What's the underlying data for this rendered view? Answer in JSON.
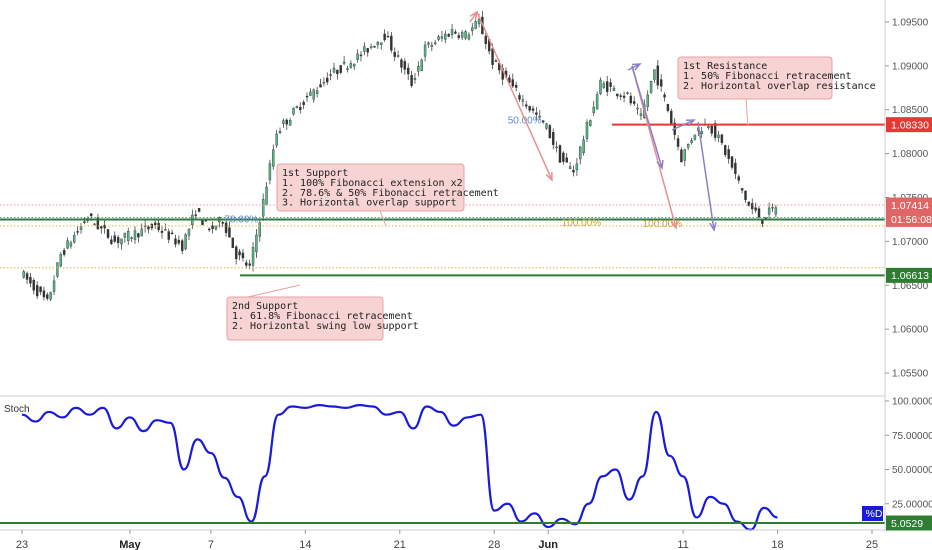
{
  "chart_data": [
    {
      "type": "candlestick",
      "title": "",
      "x_start": "2018-04-23",
      "x_end": "2018-06-25",
      "x_ticks": [
        {
          "date": "2018-04-23",
          "label": "23",
          "bold": false
        },
        {
          "date": "2018-05-01",
          "label": "May",
          "bold": true
        },
        {
          "date": "2018-05-07",
          "label": "7",
          "bold": false
        },
        {
          "date": "2018-05-14",
          "label": "14",
          "bold": false
        },
        {
          "date": "2018-05-21",
          "label": "21",
          "bold": false
        },
        {
          "date": "2018-05-28",
          "label": "28",
          "bold": false
        },
        {
          "date": "2018-06-01",
          "label": "Jun",
          "bold": true
        },
        {
          "date": "2018-06-11",
          "label": "11",
          "bold": false
        },
        {
          "date": "2018-06-18",
          "label": "18",
          "bold": false
        },
        {
          "date": "2018-06-25",
          "label": "25",
          "bold": false
        }
      ],
      "ylim": [
        1.0525,
        1.0975
      ],
      "y_ticks": [
        "1.09500",
        "1.09000",
        "1.08500",
        "1.08000",
        "1.07500",
        "1.07000",
        "1.06500",
        "1.06000",
        "1.05500"
      ],
      "grid": false,
      "candle_up_color": "#53b987",
      "candle_down_color": "#333333",
      "price_path": [
        {
          "date": "2018-04-23",
          "price": 1.0665
        },
        {
          "date": "2018-04-25",
          "price": 1.063
        },
        {
          "date": "2018-04-26",
          "price": 1.0685
        },
        {
          "date": "2018-04-28",
          "price": 1.0728
        },
        {
          "date": "2018-04-30",
          "price": 1.07
        },
        {
          "date": "2018-05-03",
          "price": 1.0718
        },
        {
          "date": "2018-05-05",
          "price": 1.0695
        },
        {
          "date": "2018-05-06",
          "price": 1.0735
        },
        {
          "date": "2018-05-07",
          "price": 1.0712
        },
        {
          "date": "2018-05-08",
          "price": 1.0725
        },
        {
          "date": "2018-05-09",
          "price": 1.0685
        },
        {
          "date": "2018-05-10",
          "price": 1.067
        },
        {
          "date": "2018-05-11",
          "price": 1.0745
        },
        {
          "date": "2018-05-12",
          "price": 1.0825
        },
        {
          "date": "2018-05-14",
          "price": 1.086
        },
        {
          "date": "2018-05-16",
          "price": 1.089
        },
        {
          "date": "2018-05-18",
          "price": 1.091
        },
        {
          "date": "2018-05-20",
          "price": 1.0935
        },
        {
          "date": "2018-05-22",
          "price": 1.088
        },
        {
          "date": "2018-05-23",
          "price": 1.092
        },
        {
          "date": "2018-05-25",
          "price": 1.094
        },
        {
          "date": "2018-05-26",
          "price": 1.0935
        },
        {
          "date": "2018-05-27",
          "price": 1.095
        },
        {
          "date": "2018-05-28",
          "price": 1.0905
        },
        {
          "date": "2018-05-30",
          "price": 1.0865
        },
        {
          "date": "2018-06-01",
          "price": 1.083
        },
        {
          "date": "2018-06-02",
          "price": 1.0795
        },
        {
          "date": "2018-06-03",
          "price": 1.078
        },
        {
          "date": "2018-06-04",
          "price": 1.083
        },
        {
          "date": "2018-06-05",
          "price": 1.088
        },
        {
          "date": "2018-06-07",
          "price": 1.0865
        },
        {
          "date": "2018-06-08",
          "price": 1.084
        },
        {
          "date": "2018-06-09",
          "price": 1.0895
        },
        {
          "date": "2018-06-10",
          "price": 1.085
        },
        {
          "date": "2018-06-11",
          "price": 1.0795
        },
        {
          "date": "2018-06-12",
          "price": 1.0825
        },
        {
          "date": "2018-06-13",
          "price": 1.0835
        },
        {
          "date": "2018-06-14",
          "price": 1.081
        },
        {
          "date": "2018-06-15",
          "price": 1.0775
        },
        {
          "date": "2018-06-16",
          "price": 1.074
        },
        {
          "date": "2018-06-17",
          "price": 1.0725
        },
        {
          "date": "2018-06-18",
          "price": 1.074
        }
      ],
      "horizontal_levels": [
        {
          "price": 1.0833,
          "label": "1.08330",
          "color": "#e53935",
          "style": "solid",
          "badge": true
        },
        {
          "price": 1.07414,
          "label": "1.07414",
          "color": "#ef9a9a",
          "style": "dotted",
          "badge": true,
          "badge_color": "#e06666"
        },
        {
          "price": 1.0725,
          "label": "01:56:08",
          "color": "#2e7d32",
          "style": "solid",
          "badge": true,
          "badge_color": "#e06666"
        },
        {
          "price": 1.0725,
          "label": "",
          "color": "#5b8bd8",
          "style": "dotted",
          "badge": false
        },
        {
          "price": 1.072,
          "label": "",
          "color": "#e6b33a",
          "style": "dotted",
          "badge": false
        },
        {
          "price": 1.067,
          "label": "",
          "color": "#e6b33a",
          "style": "dotted",
          "badge": false
        },
        {
          "price": 1.06613,
          "label": "1.06613",
          "color": "#2e7d32",
          "style": "solid",
          "badge": true
        }
      ],
      "fib_labels": [
        {
          "text": "50.00%",
          "date": "2018-05-29",
          "price": 1.0838,
          "color": "#5b8bd8"
        },
        {
          "text": "78.60%",
          "date": "2018-05-08",
          "price": 1.0725,
          "color": "#5b8bd8"
        },
        {
          "text": "100.00%",
          "date": "2018-06-02",
          "price": 1.0721,
          "color": "#c9a43a"
        },
        {
          "text": "100.00%",
          "date": "2018-06-08",
          "price": 1.072,
          "color": "#c9a43a"
        }
      ],
      "annotations": [
        {
          "title": "1st Resistance",
          "lines": [
            "1. 50% Fibonacci retracement",
            "2. Horizontal overlap resistance"
          ]
        },
        {
          "title": "1st Support",
          "lines": [
            "1. 100% Fibonacci extension x2",
            "2. 78.6% & 50% Fibonacci retracement",
            "3. Horizontal overlap support"
          ]
        },
        {
          "title": "2nd Support",
          "lines": [
            "1. 61.8% Fibonacci retracement",
            "2. Horizontal swing low support"
          ]
        }
      ]
    },
    {
      "type": "line",
      "title": "Stoch",
      "ylim": [
        0,
        100
      ],
      "y_ticks": [
        "100.0000",
        "75.00000",
        "50.00000",
        "25.00000"
      ],
      "series": [
        {
          "name": "%D",
          "color": "#1a1adb",
          "points": [
            {
              "date": "2018-04-23",
              "value": 90
            },
            {
              "date": "2018-04-24",
              "value": 85
            },
            {
              "date": "2018-04-25",
              "value": 92
            },
            {
              "date": "2018-04-26",
              "value": 88
            },
            {
              "date": "2018-04-27",
              "value": 95
            },
            {
              "date": "2018-04-28",
              "value": 90
            },
            {
              "date": "2018-04-29",
              "value": 95
            },
            {
              "date": "2018-04-30",
              "value": 80
            },
            {
              "date": "2018-05-01",
              "value": 88
            },
            {
              "date": "2018-05-02",
              "value": 78
            },
            {
              "date": "2018-05-03",
              "value": 86
            },
            {
              "date": "2018-05-04",
              "value": 84
            },
            {
              "date": "2018-05-05",
              "value": 50
            },
            {
              "date": "2018-05-06",
              "value": 72
            },
            {
              "date": "2018-05-07",
              "value": 62
            },
            {
              "date": "2018-05-08",
              "value": 44
            },
            {
              "date": "2018-05-09",
              "value": 30
            },
            {
              "date": "2018-05-10",
              "value": 12
            },
            {
              "date": "2018-05-11",
              "value": 45
            },
            {
              "date": "2018-05-12",
              "value": 90
            },
            {
              "date": "2018-05-13",
              "value": 96
            },
            {
              "date": "2018-05-14",
              "value": 95
            },
            {
              "date": "2018-05-15",
              "value": 97
            },
            {
              "date": "2018-05-16",
              "value": 96
            },
            {
              "date": "2018-05-17",
              "value": 95
            },
            {
              "date": "2018-05-18",
              "value": 97
            },
            {
              "date": "2018-05-19",
              "value": 96
            },
            {
              "date": "2018-05-20",
              "value": 90
            },
            {
              "date": "2018-05-21",
              "value": 92
            },
            {
              "date": "2018-05-22",
              "value": 80
            },
            {
              "date": "2018-05-23",
              "value": 96
            },
            {
              "date": "2018-05-24",
              "value": 92
            },
            {
              "date": "2018-05-25",
              "value": 82
            },
            {
              "date": "2018-05-26",
              "value": 88
            },
            {
              "date": "2018-05-27",
              "value": 90
            },
            {
              "date": "2018-05-28",
              "value": 20
            },
            {
              "date": "2018-05-29",
              "value": 25
            },
            {
              "date": "2018-05-30",
              "value": 12
            },
            {
              "date": "2018-05-31",
              "value": 18
            },
            {
              "date": "2018-06-01",
              "value": 8
            },
            {
              "date": "2018-06-02",
              "value": 14
            },
            {
              "date": "2018-06-03",
              "value": 10
            },
            {
              "date": "2018-06-04",
              "value": 25
            },
            {
              "date": "2018-06-05",
              "value": 45
            },
            {
              "date": "2018-06-06",
              "value": 50
            },
            {
              "date": "2018-06-07",
              "value": 28
            },
            {
              "date": "2018-06-08",
              "value": 45
            },
            {
              "date": "2018-06-09",
              "value": 92
            },
            {
              "date": "2018-06-10",
              "value": 60
            },
            {
              "date": "2018-06-11",
              "value": 45
            },
            {
              "date": "2018-06-12",
              "value": 15
            },
            {
              "date": "2018-06-13",
              "value": 30
            },
            {
              "date": "2018-06-14",
              "value": 25
            },
            {
              "date": "2018-06-15",
              "value": 12
            },
            {
              "date": "2018-06-16",
              "value": 6
            },
            {
              "date": "2018-06-17",
              "value": 22
            },
            {
              "date": "2018-06-18",
              "value": 15
            }
          ]
        }
      ],
      "horizontal_levels": [
        {
          "value": 5.0529,
          "label": "5.0529",
          "color": "#2e7d32",
          "badge": true
        }
      ],
      "series_badge": {
        "label": "%D",
        "color": "#1a1adb"
      }
    }
  ]
}
